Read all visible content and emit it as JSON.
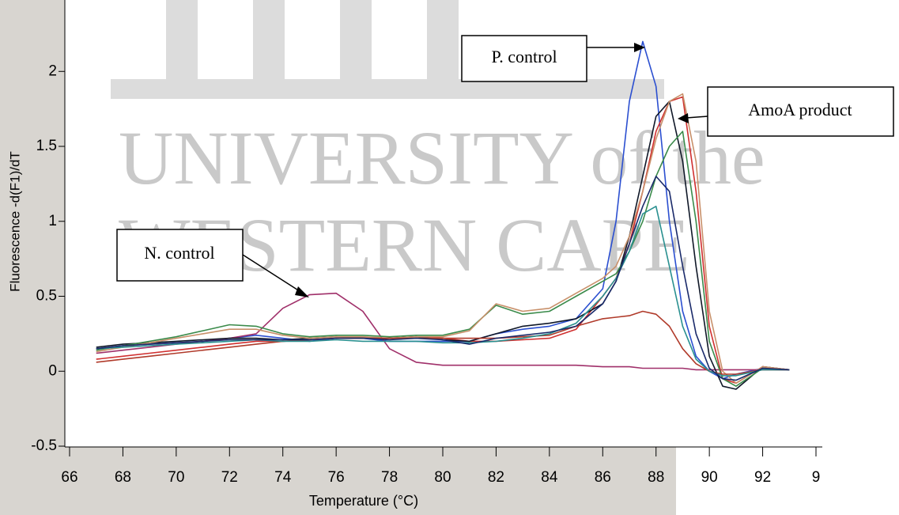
{
  "chart_data": {
    "type": "line",
    "xlabel": "Temperature (°C)",
    "ylabel": "Fluorescence -d(F1)/dT",
    "watermark": [
      "UNIVERSITY of the",
      "WESTERN CAPE"
    ],
    "annotations": [
      "P. control",
      "AmoA product",
      "N. control"
    ],
    "xlim": [
      66,
      94
    ],
    "ylim": [
      -0.5,
      2.45
    ],
    "xticks": [
      66,
      68,
      70,
      72,
      74,
      76,
      78,
      80,
      82,
      84,
      86,
      88,
      90,
      92,
      {
        "value": 94,
        "label": "9"
      }
    ],
    "yticks": [
      -0.5,
      0,
      0.5,
      1,
      1.5,
      2
    ],
    "x": [
      67,
      68,
      69,
      70,
      71,
      72,
      73,
      74,
      75,
      76,
      77,
      78,
      79,
      80,
      81,
      82,
      83,
      84,
      85,
      86,
      86.5,
      87,
      87.5,
      88,
      88.5,
      89,
      89.5,
      90,
      90.5,
      91,
      92,
      93
    ],
    "series": [
      {
        "color": "#2b4fd0",
        "values": [
          0.15,
          0.17,
          0.18,
          0.19,
          0.2,
          0.22,
          0.24,
          0.22,
          0.2,
          0.22,
          0.22,
          0.2,
          0.2,
          0.2,
          0.2,
          0.25,
          0.28,
          0.3,
          0.35,
          0.55,
          1.0,
          1.8,
          2.2,
          1.9,
          1.0,
          0.4,
          0.1,
          0.0,
          -0.05,
          -0.02,
          0.02,
          0.01
        ]
      },
      {
        "color": "#a0306a",
        "values": [
          0.12,
          0.14,
          0.16,
          0.18,
          0.2,
          0.22,
          0.25,
          0.42,
          0.51,
          0.52,
          0.4,
          0.15,
          0.06,
          0.04,
          0.04,
          0.04,
          0.04,
          0.04,
          0.04,
          0.03,
          0.03,
          0.03,
          0.02,
          0.02,
          0.02,
          0.02,
          0.01,
          0.01,
          0.01,
          0.01,
          0.01,
          0.01
        ]
      },
      {
        "color": "#d03030",
        "values": [
          0.08,
          0.1,
          0.12,
          0.14,
          0.16,
          0.18,
          0.2,
          0.2,
          0.21,
          0.22,
          0.22,
          0.22,
          0.23,
          0.22,
          0.2,
          0.2,
          0.21,
          0.22,
          0.28,
          0.5,
          0.62,
          0.85,
          1.2,
          1.6,
          1.8,
          1.83,
          1.2,
          0.3,
          -0.05,
          -0.08,
          0.03,
          0.01
        ]
      },
      {
        "color": "#101828",
        "values": [
          0.16,
          0.18,
          0.19,
          0.2,
          0.21,
          0.22,
          0.22,
          0.21,
          0.22,
          0.23,
          0.22,
          0.22,
          0.23,
          0.21,
          0.2,
          0.25,
          0.3,
          0.32,
          0.35,
          0.45,
          0.6,
          0.9,
          1.3,
          1.7,
          1.8,
          1.4,
          0.7,
          0.1,
          -0.1,
          -0.12,
          0.03,
          0.01
        ]
      },
      {
        "color": "#3a8a4a",
        "values": [
          0.14,
          0.17,
          0.2,
          0.23,
          0.27,
          0.31,
          0.3,
          0.25,
          0.23,
          0.24,
          0.24,
          0.23,
          0.24,
          0.24,
          0.28,
          0.44,
          0.38,
          0.4,
          0.5,
          0.6,
          0.65,
          0.8,
          1.0,
          1.3,
          1.5,
          1.6,
          1.0,
          0.2,
          -0.05,
          -0.1,
          0.02,
          0.01
        ]
      },
      {
        "color": "#c8906a",
        "values": [
          0.13,
          0.16,
          0.19,
          0.22,
          0.25,
          0.28,
          0.28,
          0.24,
          0.22,
          0.23,
          0.23,
          0.22,
          0.23,
          0.23,
          0.27,
          0.45,
          0.4,
          0.42,
          0.52,
          0.62,
          0.7,
          0.9,
          1.2,
          1.55,
          1.8,
          1.85,
          1.4,
          0.4,
          0.0,
          -0.08,
          0.03,
          0.01
        ]
      },
      {
        "color": "#b03a2a",
        "values": [
          0.06,
          0.08,
          0.1,
          0.12,
          0.14,
          0.16,
          0.18,
          0.2,
          0.21,
          0.22,
          0.22,
          0.22,
          0.22,
          0.22,
          0.22,
          0.22,
          0.23,
          0.24,
          0.3,
          0.35,
          0.36,
          0.37,
          0.4,
          0.38,
          0.3,
          0.15,
          0.05,
          0.0,
          -0.02,
          -0.02,
          0.01,
          0.01
        ]
      },
      {
        "color": "#2a9090",
        "values": [
          0.15,
          0.16,
          0.17,
          0.18,
          0.19,
          0.2,
          0.21,
          0.2,
          0.2,
          0.21,
          0.2,
          0.2,
          0.2,
          0.19,
          0.19,
          0.2,
          0.22,
          0.25,
          0.32,
          0.5,
          0.62,
          0.8,
          1.05,
          1.1,
          0.7,
          0.3,
          0.08,
          0.0,
          -0.03,
          -0.03,
          0.01,
          0.01
        ]
      },
      {
        "color": "#1a2a6a",
        "values": [
          0.15,
          0.17,
          0.18,
          0.19,
          0.2,
          0.21,
          0.21,
          0.21,
          0.21,
          0.22,
          0.22,
          0.21,
          0.22,
          0.21,
          0.18,
          0.22,
          0.24,
          0.26,
          0.3,
          0.45,
          0.6,
          0.85,
          1.1,
          1.3,
          1.2,
          0.7,
          0.25,
          0.02,
          -0.05,
          -0.06,
          0.02,
          0.01
        ]
      }
    ]
  }
}
